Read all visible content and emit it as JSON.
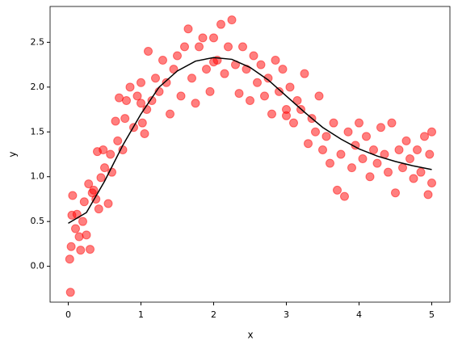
{
  "chart_data": {
    "type": "scatter",
    "xlabel": "x",
    "ylabel": "y",
    "xlim": [
      -0.25,
      5.25
    ],
    "ylim": [
      -0.4,
      2.9
    ],
    "xticks": [
      0,
      1,
      2,
      3,
      4,
      5
    ],
    "yticks": [
      {
        "value": 0,
        "label": "0.0"
      },
      {
        "value": 0.5,
        "label": "0.5"
      },
      {
        "value": 1,
        "label": "1.0"
      },
      {
        "value": 1.5,
        "label": "1.5"
      },
      {
        "value": 2,
        "label": "2.0"
      },
      {
        "value": 2.5,
        "label": "2.5"
      }
    ],
    "series": [
      {
        "type": "scatter",
        "color": "#ff0000",
        "x": [
          0.02,
          0.03,
          0.04,
          0.05,
          0.06,
          0.1,
          0.12,
          0.15,
          0.17,
          0.2,
          0.22,
          0.25,
          0.28,
          0.3,
          0.33,
          0.35,
          0.38,
          0.4,
          0.42,
          0.45,
          0.48,
          0.5,
          0.55,
          0.58,
          0.6,
          0.65,
          0.68,
          0.7,
          0.75,
          0.78,
          0.8,
          0.85,
          0.9,
          0.95,
          1.0,
          1.02,
          1.05,
          1.08,
          1.1,
          1.15,
          1.2,
          1.25,
          1.3,
          1.35,
          1.4,
          1.45,
          1.5,
          1.55,
          1.6,
          1.65,
          1.7,
          1.75,
          1.8,
          1.85,
          1.9,
          1.95,
          2.0,
          2.05,
          2.1,
          2.15,
          2.2,
          2.25,
          2.3,
          2.35,
          2.4,
          2.45,
          2.5,
          2.55,
          2.6,
          2.65,
          2.7,
          2.75,
          2.8,
          2.85,
          2.9,
          2.95,
          3.0,
          3.05,
          3.1,
          3.15,
          3.2,
          3.25,
          3.3,
          3.35,
          3.4,
          3.45,
          3.5,
          3.55,
          3.6,
          3.65,
          3.7,
          3.75,
          3.8,
          3.85,
          3.9,
          3.95,
          4.0,
          4.05,
          4.1,
          4.15,
          4.2,
          4.25,
          4.3,
          4.35,
          4.4,
          4.45,
          4.5,
          4.55,
          4.6,
          4.65,
          4.7,
          4.75,
          4.8,
          4.85,
          4.9,
          4.95,
          5.0,
          5.0,
          4.97,
          3.0,
          2.0,
          1.0
        ],
        "values": [
          0.08,
          -0.29,
          0.22,
          0.57,
          0.79,
          0.42,
          0.58,
          0.33,
          0.18,
          0.5,
          0.72,
          0.35,
          0.92,
          0.19,
          0.82,
          0.85,
          0.75,
          1.28,
          0.64,
          0.99,
          1.3,
          1.1,
          0.7,
          1.25,
          1.05,
          1.62,
          1.4,
          1.88,
          1.3,
          1.65,
          1.85,
          2.0,
          1.55,
          1.9,
          2.05,
          1.6,
          1.48,
          1.75,
          2.4,
          1.85,
          2.1,
          1.95,
          2.3,
          2.05,
          1.7,
          2.2,
          2.35,
          1.9,
          2.45,
          2.65,
          2.1,
          1.82,
          2.45,
          2.55,
          2.2,
          1.95,
          2.55,
          2.3,
          2.7,
          2.15,
          2.45,
          2.75,
          2.25,
          1.93,
          2.45,
          2.2,
          1.85,
          2.35,
          2.05,
          2.25,
          1.9,
          2.1,
          1.7,
          2.3,
          1.95,
          2.2,
          1.75,
          2.0,
          1.6,
          1.85,
          1.75,
          2.15,
          1.37,
          1.65,
          1.5,
          1.9,
          1.3,
          1.45,
          1.15,
          1.6,
          0.85,
          1.25,
          0.78,
          1.5,
          1.1,
          1.35,
          1.6,
          1.2,
          1.45,
          1.0,
          1.3,
          1.15,
          1.55,
          1.25,
          1.05,
          1.6,
          0.82,
          1.3,
          1.1,
          1.4,
          1.2,
          0.98,
          1.3,
          1.05,
          1.45,
          0.8,
          1.5,
          0.93,
          1.25,
          1.68,
          2.28,
          1.82
        ]
      },
      {
        "type": "line",
        "color": "#000000",
        "x": [
          0,
          0.25,
          0.5,
          0.75,
          1.0,
          1.25,
          1.5,
          1.75,
          2.0,
          2.25,
          2.5,
          2.75,
          3.0,
          3.25,
          3.5,
          3.75,
          4.0,
          4.25,
          4.5,
          4.75,
          5.0
        ],
        "values": [
          0.48,
          0.6,
          0.95,
          1.35,
          1.7,
          2.0,
          2.18,
          2.29,
          2.33,
          2.31,
          2.22,
          2.08,
          1.9,
          1.72,
          1.55,
          1.42,
          1.31,
          1.23,
          1.17,
          1.12,
          1.08
        ]
      }
    ]
  }
}
